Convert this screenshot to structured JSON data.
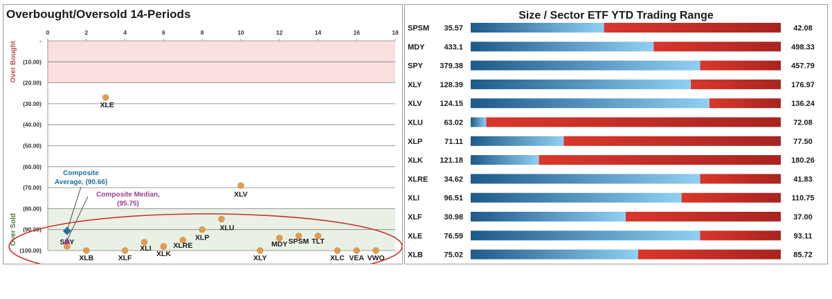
{
  "chart_data": [
    {
      "type": "scatter",
      "title": "Overbought/Oversold 14-Periods",
      "xlim": [
        0,
        18
      ],
      "x_ticks": [
        "0",
        "2",
        "4",
        "6",
        "8",
        "10",
        "12",
        "14",
        "16",
        "18"
      ],
      "ylim": [
        -100,
        0
      ],
      "y_ticks": [
        "-",
        "(10.00)",
        "(20.00)",
        "(30.00)",
        "(40.00)",
        "(50.00)",
        "(60.00)",
        "(70.00)",
        "(80.00)",
        "(90.00)",
        "(100.00)"
      ],
      "zones": [
        {
          "label": "Over Bought",
          "from": 0,
          "to": -20,
          "color": "#fbe0e0",
          "label_color": "#c0504d"
        },
        {
          "label": "Over Sold",
          "from": -80,
          "to": -100,
          "color": "#e8f1e4",
          "label_color": "#4f7a3a"
        }
      ],
      "grid": true,
      "points": [
        {
          "label": "XLE",
          "x": 3,
          "y": -27
        },
        {
          "label": "XLV",
          "x": 10,
          "y": -69
        },
        {
          "label": "XLU",
          "x": 9,
          "y": -85
        },
        {
          "label": "XLP",
          "x": 8,
          "y": -90
        },
        {
          "label": "SPY",
          "x": 1,
          "y": -98
        },
        {
          "label": "XLB",
          "x": 2,
          "y": -100
        },
        {
          "label": "XLF",
          "x": 4,
          "y": -100
        },
        {
          "label": "XLI",
          "x": 5,
          "y": -96
        },
        {
          "label": "XLK",
          "x": 6,
          "y": -98
        },
        {
          "label": "XLRE",
          "x": 7,
          "y": -95
        },
        {
          "label": "XLY",
          "x": 11,
          "y": -100
        },
        {
          "label": "MDY",
          "x": 12,
          "y": -94
        },
        {
          "label": "SPSM",
          "x": 13,
          "y": -93
        },
        {
          "label": "TLT",
          "x": 14,
          "y": -93
        },
        {
          "label": "XLC",
          "x": 15,
          "y": -100
        },
        {
          "label": "VEA",
          "x": 16,
          "y": -100
        },
        {
          "label": "VWO",
          "x": 17,
          "y": -100
        }
      ],
      "composite_average": {
        "label": "Composite Average, (90.66)",
        "lines": [
          "Composite",
          "Average, (90.66)"
        ],
        "x": 1,
        "y": -90.66,
        "color": "#1f6f9f"
      },
      "composite_median": {
        "label": "Composite Median, (95.75)",
        "lines": [
          "Composite Median,",
          "(95.75)"
        ],
        "x": 1,
        "y": -95.75,
        "color": "#9b3f8f"
      },
      "point_color": "#e39b4c"
    },
    {
      "type": "bar",
      "title": "Size / Sector ETF YTD Trading Range",
      "rows": [
        {
          "label": "SPSM",
          "low": "35.57",
          "high": "42.08",
          "position": 0.43
        },
        {
          "label": "MDY",
          "low": "433.1",
          "high": "498.33",
          "position": 0.59
        },
        {
          "label": "SPY",
          "low": "379.38",
          "high": "457.79",
          "position": 0.74
        },
        {
          "label": "XLY",
          "low": "128.39",
          "high": "176.97",
          "position": 0.71
        },
        {
          "label": "XLV",
          "low": "124.15",
          "high": "136.24",
          "position": 0.77
        },
        {
          "label": "XLU",
          "low": "63.02",
          "high": "72.08",
          "position": 0.05
        },
        {
          "label": "XLP",
          "low": "71.11",
          "high": "77.50",
          "position": 0.3
        },
        {
          "label": "XLK",
          "low": "121.18",
          "high": "180.26",
          "position": 0.22
        },
        {
          "label": "XLRE",
          "low": "34.62",
          "high": "41.83",
          "position": 0.74
        },
        {
          "label": "XLI",
          "low": "96.51",
          "high": "110.75",
          "position": 0.68
        },
        {
          "label": "XLF",
          "low": "30.98",
          "high": "37.00",
          "position": 0.5
        },
        {
          "label": "XLE",
          "low": "76.59",
          "high": "93.11",
          "position": 0.74
        },
        {
          "label": "XLB",
          "low": "75.02",
          "high": "85.72",
          "position": 0.54
        }
      ],
      "colors": {
        "blue_dark": "#1e5a8a",
        "blue_light": "#8fd0f2",
        "red": "#d9372c",
        "red_dark": "#a82420"
      }
    }
  ]
}
